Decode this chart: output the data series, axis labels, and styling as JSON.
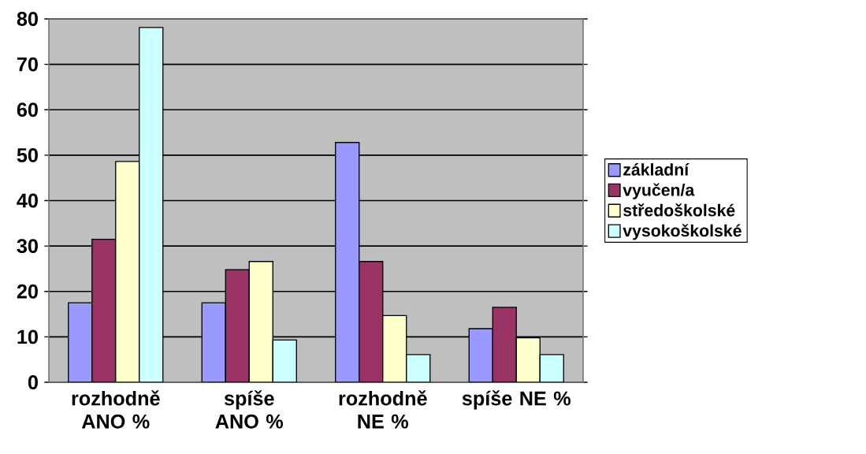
{
  "chart_data": {
    "type": "bar",
    "categories": [
      "rozhodně ANO %",
      "spíše ANO %",
      "rozhodně NE %",
      "spíše NE %"
    ],
    "series": [
      {
        "name": "základní",
        "color": "#9999ff",
        "values": [
          17.5,
          17.5,
          52.8,
          11.8
        ]
      },
      {
        "name": "vyučen/a",
        "color": "#993366",
        "values": [
          31.5,
          24.8,
          26.6,
          16.5
        ]
      },
      {
        "name": "středoškolské",
        "color": "#ffffcc",
        "values": [
          48.6,
          26.6,
          14.7,
          9.8
        ]
      },
      {
        "name": "vysokoškolské",
        "color": "#ccffff",
        "values": [
          78.1,
          9.3,
          6.1,
          6.1
        ]
      }
    ],
    "ylim": [
      0,
      80
    ],
    "yticks": [
      0,
      10,
      20,
      30,
      40,
      50,
      60,
      70,
      80
    ],
    "grid": "y",
    "legend": "right"
  }
}
